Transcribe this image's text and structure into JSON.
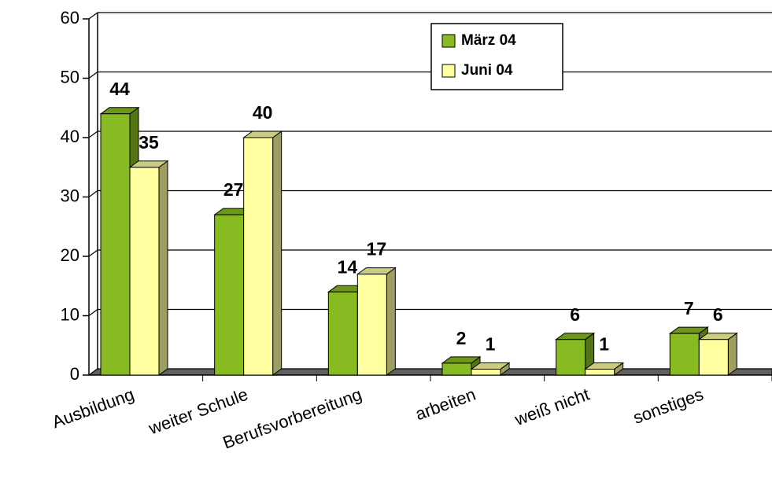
{
  "chart_data": {
    "type": "bar3d",
    "categories": [
      "Ausbildung",
      "weiter Schule",
      "Berufsvorbereitung",
      "arbeiten",
      "weiß nicht",
      "sonstiges"
    ],
    "series": [
      {
        "name": "März 04",
        "color": "#88bb22",
        "values": [
          44,
          27,
          14,
          2,
          6,
          7
        ]
      },
      {
        "name": "Juni 04",
        "color": "#ffffa0",
        "values": [
          35,
          40,
          17,
          1,
          1,
          6
        ]
      }
    ],
    "ylim": [
      0,
      60
    ],
    "yticks": [
      0,
      10,
      20,
      30,
      40,
      50,
      60
    ],
    "grid": true,
    "legend": "top-right"
  }
}
